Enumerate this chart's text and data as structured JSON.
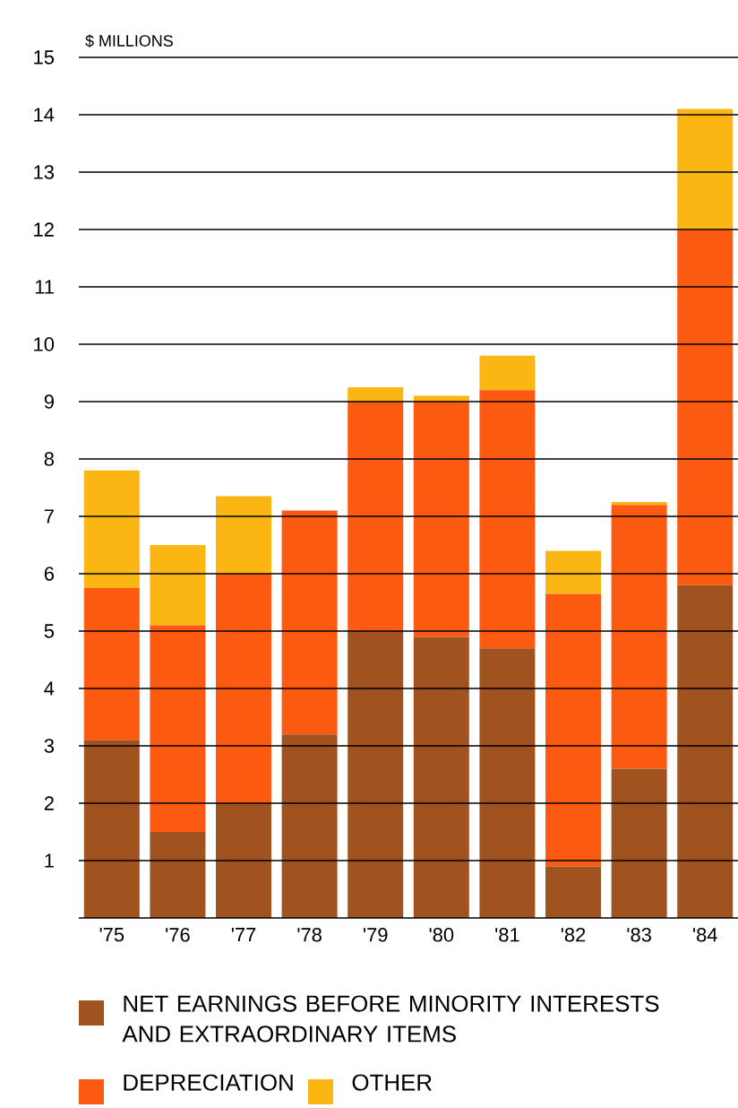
{
  "chart_data": {
    "type": "bar",
    "stacked": true,
    "ylabel": "$ MILLIONS",
    "categories": [
      "'75",
      "'76",
      "'77",
      "'78",
      "'79",
      "'80",
      "'81",
      "'82",
      "'83",
      "'84"
    ],
    "series": [
      {
        "name": "NET EARNINGS BEFORE MINORITY INTERESTS AND EXTRAORDINARY ITEMS",
        "color": "#a0521f",
        "values": [
          3.1,
          1.5,
          2.0,
          3.2,
          5.0,
          4.9,
          4.7,
          0.9,
          2.6,
          5.8
        ]
      },
      {
        "name": "DEPRECIATION",
        "color": "#fb5a10",
        "values": [
          2.65,
          3.6,
          4.0,
          3.9,
          4.0,
          4.1,
          4.5,
          4.75,
          4.6,
          6.2
        ]
      },
      {
        "name": "OTHER",
        "color": "#fbb614",
        "values": [
          2.05,
          1.4,
          1.35,
          0,
          0.25,
          0.1,
          0.6,
          0.75,
          0.05,
          2.1
        ]
      }
    ],
    "ylim": [
      0,
      15
    ],
    "yticks": [
      1,
      2,
      3,
      4,
      5,
      6,
      7,
      8,
      9,
      10,
      11,
      12,
      13,
      14,
      15
    ],
    "grid": "y",
    "legend": "bottom"
  }
}
